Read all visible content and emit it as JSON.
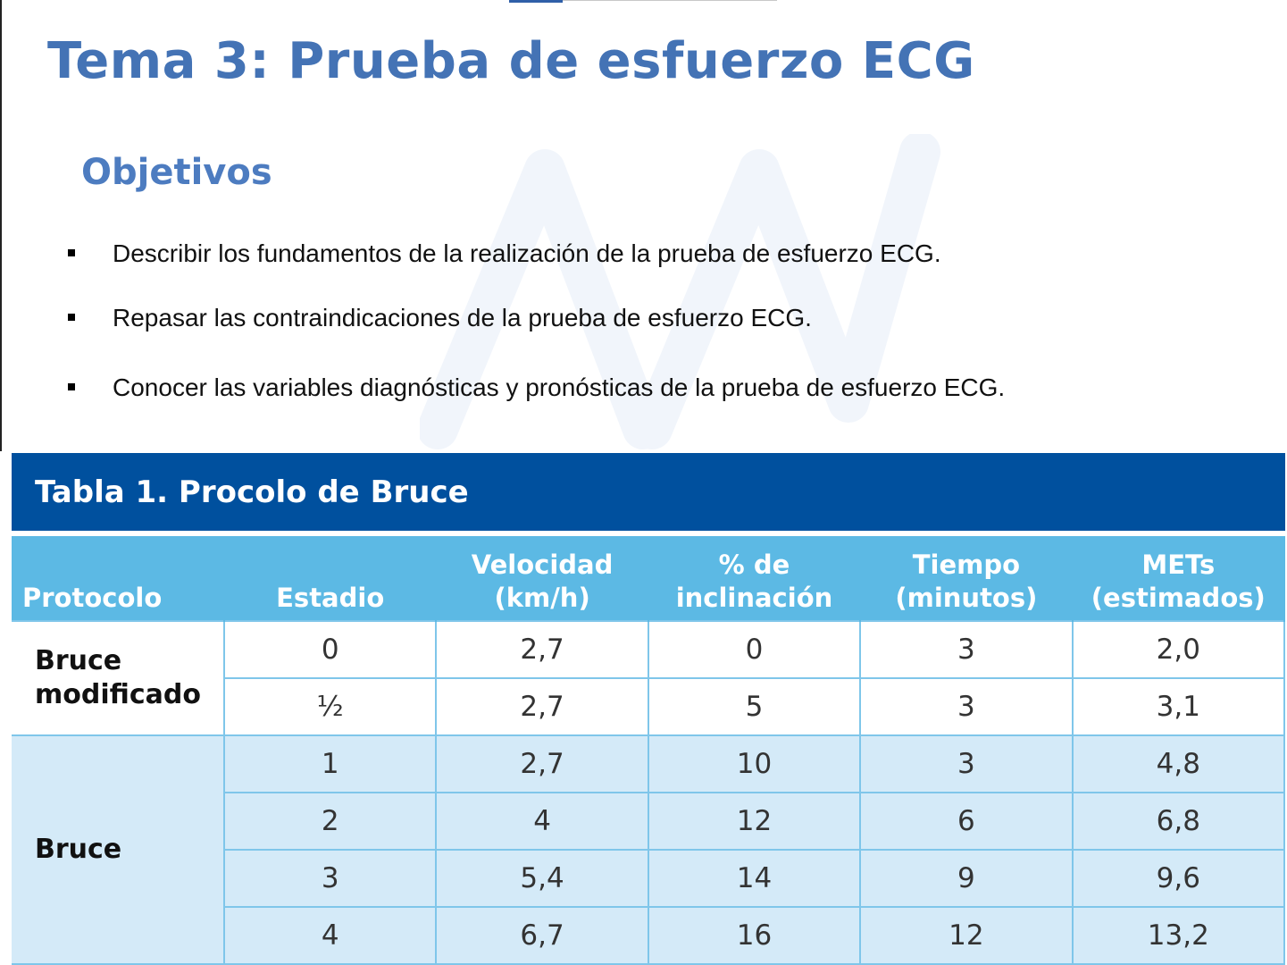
{
  "title": "Tema 3: Prueba de esfuerzo ECG",
  "subtitle": "Objetivos",
  "objectives": [
    "Describir los fundamentos de la realización de la prueba de esfuerzo ECG.",
    "Repasar las contraindicaciones de la prueba de esfuerzo ECG.",
    "Conocer las variables diagnósticas y pronósticas de la prueba de esfuerzo ECG."
  ],
  "table": {
    "title": "Tabla 1. Procolo de Bruce",
    "headers": {
      "protocolo": "Protocolo",
      "estadio": "Estadio",
      "velocidad": [
        "Velocidad",
        "(km/h)"
      ],
      "inclinacion": "% de inclinación",
      "tiempo": [
        "Tiempo",
        "(minutos)"
      ],
      "mets": [
        "METs",
        "(estimados)"
      ]
    },
    "groups": [
      {
        "protocol": [
          "Bruce",
          "modificado"
        ],
        "rows": [
          {
            "estadio": "0",
            "velocidad": "2,7",
            "inclinacion": "0",
            "tiempo": "3",
            "mets": "2,0"
          },
          {
            "estadio": "½",
            "velocidad": "2,7",
            "inclinacion": "5",
            "tiempo": "3",
            "mets": "3,1"
          }
        ]
      },
      {
        "protocol": [
          "Bruce"
        ],
        "rows": [
          {
            "estadio": "1",
            "velocidad": "2,7",
            "inclinacion": "10",
            "tiempo": "3",
            "mets": "4,8"
          },
          {
            "estadio": "2",
            "velocidad": "4",
            "inclinacion": "12",
            "tiempo": "6",
            "mets": "6,8"
          },
          {
            "estadio": "3",
            "velocidad": "5,4",
            "inclinacion": "14",
            "tiempo": "9",
            "mets": "9,6"
          },
          {
            "estadio": "4",
            "velocidad": "6,7",
            "inclinacion": "16",
            "tiempo": "12",
            "mets": "13,2"
          }
        ]
      }
    ]
  },
  "colors": {
    "title": "#4473b5",
    "table_title_bar": "#00509e",
    "table_header": "#5cb9e4",
    "row_light_blue": "#d4eaf8"
  }
}
